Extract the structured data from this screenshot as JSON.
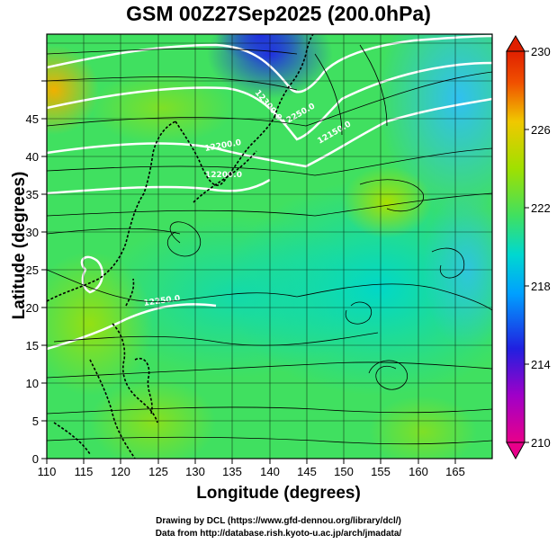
{
  "title": "GSM 00Z27Sep2025 (200.0hPa)",
  "xlabel": "Longitude (degrees)",
  "ylabel": "Latitude  (degrees)",
  "credits": [
    "Drawing by DCL (https://www.gfd-dennou.org/library/dcl/)",
    "Data from http://database.rish.kyoto-u.ac.jp/arch/jmadata/"
  ],
  "map": {
    "lon_range": [
      110,
      170
    ],
    "lat_range": [
      0,
      50
    ],
    "x_ticks": [
      "110",
      "115",
      "120",
      "125",
      "130",
      "135",
      "140",
      "145",
      "150",
      "155",
      "160",
      "165"
    ],
    "y_ticks": [
      "0",
      "5",
      "10",
      "15",
      "20",
      "25",
      "30",
      "35",
      "40",
      "45"
    ]
  },
  "colorbar": {
    "range": [
      210,
      230
    ],
    "labels": [
      "230",
      "226",
      "222",
      "218",
      "214",
      "210"
    ],
    "colors": [
      "#e8008a",
      "#a000c8",
      "#2020e0",
      "#00a0ff",
      "#00d8d0",
      "#40e060",
      "#a0e000",
      "#f0c800",
      "#f05000",
      "#e02000"
    ]
  },
  "contour_labels": [
    "12300.0",
    "12250.0",
    "12200.0",
    "12200.0",
    "12150.0",
    "12250.0"
  ]
}
